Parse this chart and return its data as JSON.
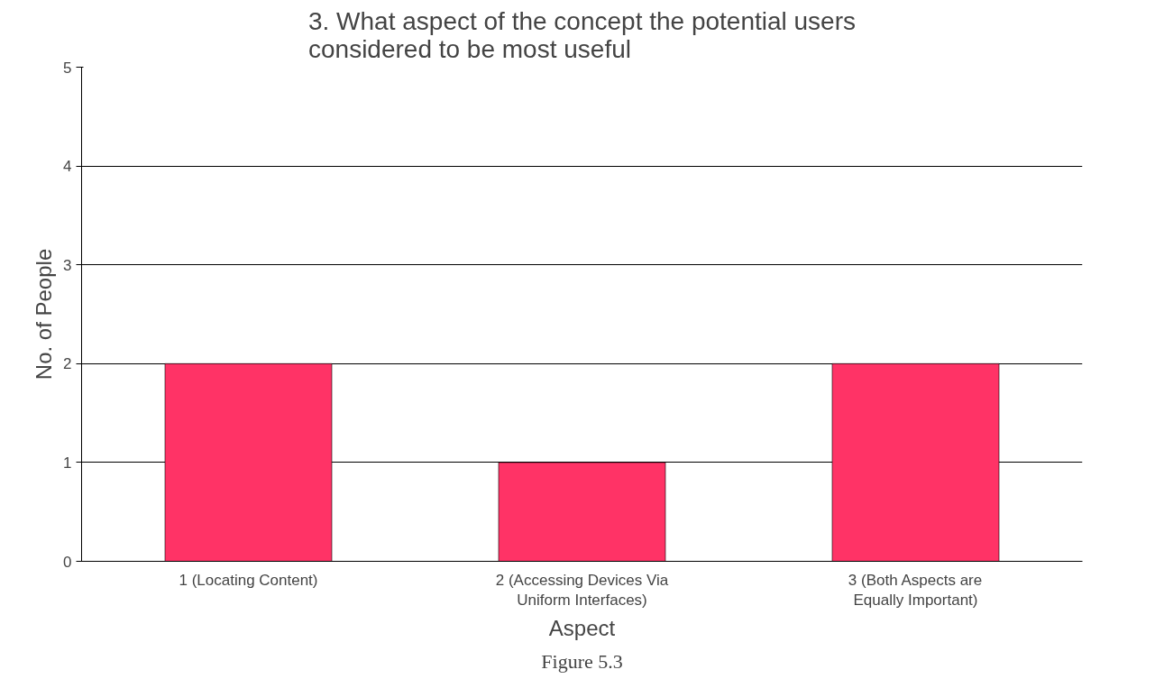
{
  "chart_data": {
    "type": "bar",
    "title": "3. What aspect of the concept the potential users considered to be most useful",
    "xlabel": "Aspect",
    "ylabel": "No. of People",
    "categories": [
      "1 (Locating Content)",
      "2 (Accessing Devices Via Uniform Interfaces)",
      "3 (Both Aspects are Equally Important)"
    ],
    "values": [
      2,
      1,
      2
    ],
    "color": "#ff3366",
    "ylim": [
      0,
      5
    ],
    "yticks": [
      0,
      1,
      2,
      3,
      4,
      5
    ],
    "grid": "y",
    "annotations": [
      "Figure 5.3"
    ]
  }
}
